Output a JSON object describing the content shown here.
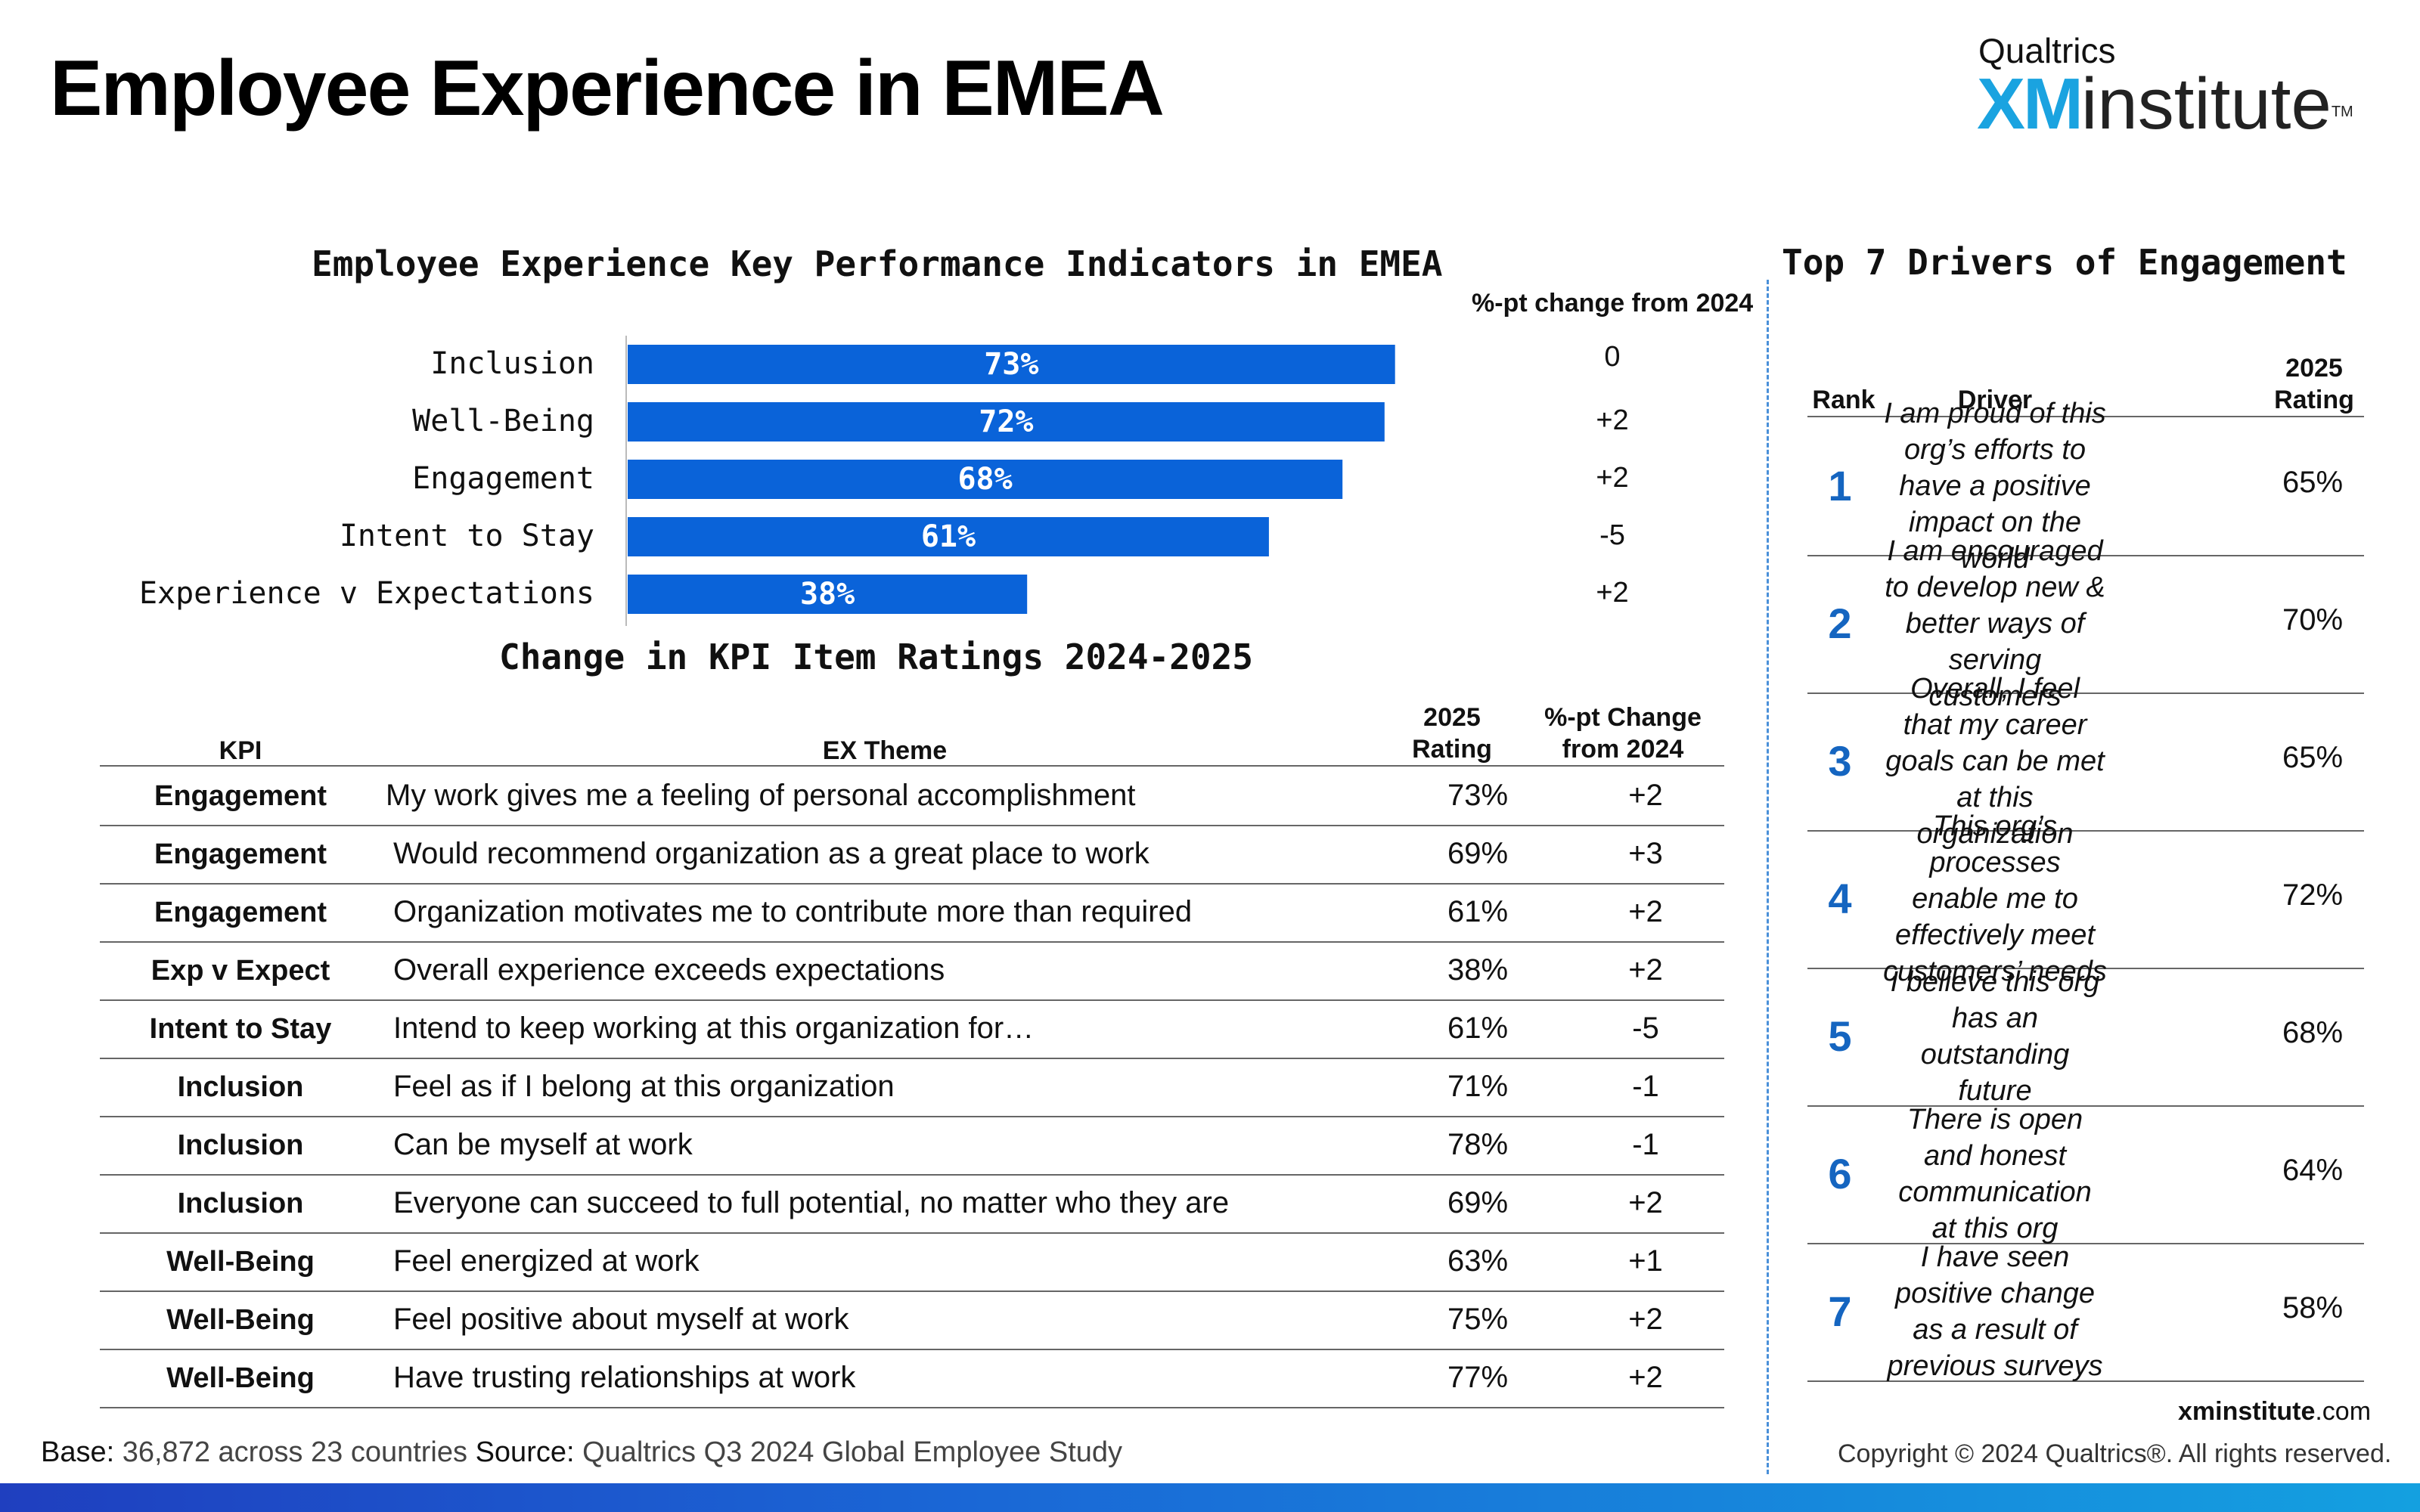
{
  "page": {
    "title": "Employee Experience in EMEA",
    "logo_top": "Qualtrics",
    "logo_xm": "XM",
    "logo_institute": "institute",
    "logo_tm": "TM"
  },
  "kpi_section": {
    "title": "Employee Experience Key Performance Indicators in EMEA",
    "change_header": "%-pt change from 2024"
  },
  "table_section": {
    "title": "Change in KPI Item Ratings 2024-2025",
    "headers": {
      "kpi": "KPI",
      "theme": "EX Theme",
      "rating_line1": "2025",
      "rating_line2": "Rating",
      "change_line1": "%-pt Change",
      "change_line2": "from 2024"
    },
    "rows": [
      {
        "kpi": "Engagement",
        "theme": "My work gives me a feeling of personal accomplishment",
        "rating": "73%",
        "change": "+2"
      },
      {
        "kpi": "Engagement",
        "theme": "Would recommend organization as a great place to work",
        "rating": "69%",
        "change": "+3"
      },
      {
        "kpi": "Engagement",
        "theme": "Organization motivates me to contribute more than required",
        "rating": "61%",
        "change": "+2"
      },
      {
        "kpi": "Exp v Expect",
        "theme": "Overall experience exceeds expectations",
        "rating": "38%",
        "change": "+2"
      },
      {
        "kpi": "Intent to Stay",
        "theme": "Intend to keep working at this organization for…",
        "rating": "61%",
        "change": "-5"
      },
      {
        "kpi": "Inclusion",
        "theme": "Feel as if I belong at this organization",
        "rating": "71%",
        "change": "-1"
      },
      {
        "kpi": "Inclusion",
        "theme": "Can be myself at work",
        "rating": "78%",
        "change": "-1"
      },
      {
        "kpi": "Inclusion",
        "theme": "Everyone can succeed to full potential, no matter who they are",
        "rating": "69%",
        "change": "+2"
      },
      {
        "kpi": "Well-Being",
        "theme": "Feel energized at work",
        "rating": "63%",
        "change": "+1"
      },
      {
        "kpi": "Well-Being",
        "theme": "Feel positive about myself at work",
        "rating": "75%",
        "change": "+2"
      },
      {
        "kpi": "Well-Being",
        "theme": "Have trusting relationships at work",
        "rating": "77%",
        "change": "+2"
      }
    ]
  },
  "drivers_section": {
    "title": "Top 7 Drivers of Engagement",
    "headers": {
      "rank": "Rank",
      "driver": "Driver",
      "rating_line1": "2025",
      "rating_line2": "Rating"
    },
    "rows": [
      {
        "rank": "1",
        "driver": "I am proud of this org’s efforts to have a positive impact on the world",
        "rating": "65%"
      },
      {
        "rank": "2",
        "driver": "I am encouraged to develop new & better ways of serving customers",
        "rating": "70%"
      },
      {
        "rank": "3",
        "driver": "Overall, I feel that my career goals can be met at this organization",
        "rating": "65%"
      },
      {
        "rank": "4",
        "driver": "This org’s processes enable me to effectively meet customers’ needs",
        "rating": "72%"
      },
      {
        "rank": "5",
        "driver": "I believe this org has an outstanding future",
        "rating": "68%"
      },
      {
        "rank": "6",
        "driver": "There is open and honest communication at this org",
        "rating": "64%"
      },
      {
        "rank": "7",
        "driver": "I have seen positive change as a result of previous surveys",
        "rating": "58%"
      }
    ]
  },
  "footer": {
    "base_label": "Base:",
    "base_text": " 36,872 across 23 countries ",
    "source_label": "Source:",
    "source_text": " Qualtrics Q3 2024 Global Employee Study",
    "url_bold": "xminstitute",
    "url_rest": ".com",
    "copyright": "Copyright © 2024 Qualtrics®. All rights reserved."
  },
  "colors": {
    "bar": "#0a63d9",
    "rank": "#1565c0",
    "accent": "#1aa3e0"
  },
  "chart_data": {
    "type": "bar",
    "orientation": "horizontal",
    "title": "Employee Experience Key Performance Indicators in EMEA",
    "categories": [
      "Inclusion",
      "Well-Being",
      "Engagement",
      "Intent to Stay",
      "Experience v Expectations"
    ],
    "values": [
      73,
      72,
      68,
      61,
      38
    ],
    "value_labels": [
      "73%",
      "72%",
      "68%",
      "61%",
      "38%"
    ],
    "change_from_2024": [
      "0",
      "+2",
      "+2",
      "-5",
      "+2"
    ],
    "xlim": [
      0,
      100
    ],
    "grid": false,
    "legend": "none"
  }
}
